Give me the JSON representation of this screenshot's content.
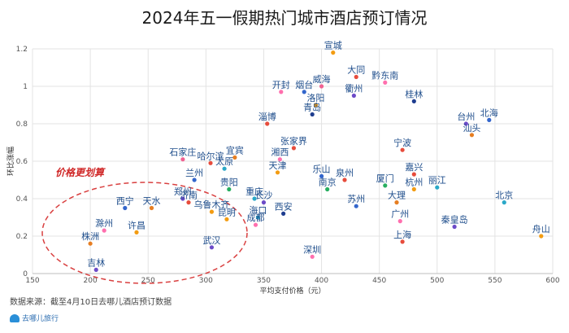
{
  "chart_data": {
    "type": "scatter",
    "title": "2024年五一假期热门城市酒店预订情况",
    "xlabel": "平均支付价格（元）",
    "ylabel": "环比涨幅",
    "xlim": [
      150,
      600
    ],
    "ylim": [
      0,
      1.2
    ],
    "xticks": [
      "150",
      "200",
      "250",
      "300",
      "350",
      "400",
      "450",
      "500",
      "550",
      "600"
    ],
    "yticks": [
      "0",
      "0.2",
      "0.4",
      "0.6",
      "0.8",
      "1",
      "1.2"
    ],
    "grid": true,
    "annotation": "价格更划算",
    "points": [
      {
        "name": "宣城",
        "x": 410,
        "y": 1.18,
        "color": "#f39c12"
      },
      {
        "name": "大同",
        "x": 430,
        "y": 1.05,
        "color": "#e74c3c"
      },
      {
        "name": "黔东南",
        "x": 455,
        "y": 1.02,
        "color": "#ff6fae"
      },
      {
        "name": "开封",
        "x": 365,
        "y": 0.97,
        "color": "#ff6fae"
      },
      {
        "name": "烟台",
        "x": 385,
        "y": 0.97,
        "color": "#3366cc"
      },
      {
        "name": "威海",
        "x": 400,
        "y": 1.0,
        "color": "#f06292"
      },
      {
        "name": "衢州",
        "x": 428,
        "y": 0.95,
        "color": "#6c4bc8"
      },
      {
        "name": "洛阳",
        "x": 395,
        "y": 0.9,
        "color": "#f39c12"
      },
      {
        "name": "桂林",
        "x": 480,
        "y": 0.92,
        "color": "#1e3d8f"
      },
      {
        "name": "青岛",
        "x": 392,
        "y": 0.85,
        "color": "#1e3d8f"
      },
      {
        "name": "淄博",
        "x": 353,
        "y": 0.8,
        "color": "#e74c3c"
      },
      {
        "name": "台州",
        "x": 525,
        "y": 0.8,
        "color": "#6c4bc8"
      },
      {
        "name": "北海",
        "x": 545,
        "y": 0.82,
        "color": "#3366cc"
      },
      {
        "name": "汕头",
        "x": 530,
        "y": 0.74,
        "color": "#e67e22"
      },
      {
        "name": "张家界",
        "x": 376,
        "y": 0.67,
        "color": "#e74c3c"
      },
      {
        "name": "宁波",
        "x": 470,
        "y": 0.66,
        "color": "#e74c3c"
      },
      {
        "name": "湘西",
        "x": 364,
        "y": 0.61,
        "color": "#ff6fae"
      },
      {
        "name": "石家庄",
        "x": 280,
        "y": 0.61,
        "color": "#f06292"
      },
      {
        "name": "宜宾",
        "x": 325,
        "y": 0.62,
        "color": "#e67e22"
      },
      {
        "name": "哈尔滨",
        "x": 304,
        "y": 0.59,
        "color": "#e74c3c"
      },
      {
        "name": "太原",
        "x": 316,
        "y": 0.56,
        "color": "#2aa8c8"
      },
      {
        "name": "天津",
        "x": 362,
        "y": 0.54,
        "color": "#f39c12"
      },
      {
        "name": "乐山",
        "x": 400,
        "y": 0.52,
        "color": "#3366cc"
      },
      {
        "name": "嘉兴",
        "x": 480,
        "y": 0.53,
        "color": "#e74c3c"
      },
      {
        "name": "泉州",
        "x": 420,
        "y": 0.5,
        "color": "#e74c3c"
      },
      {
        "name": "南京",
        "x": 405,
        "y": 0.45,
        "color": "#27ae60"
      },
      {
        "name": "厦门",
        "x": 455,
        "y": 0.47,
        "color": "#27ae60"
      },
      {
        "name": "杭州",
        "x": 480,
        "y": 0.45,
        "color": "#f39c12"
      },
      {
        "name": "丽江",
        "x": 500,
        "y": 0.46,
        "color": "#2aa8c8"
      },
      {
        "name": "兰州",
        "x": 290,
        "y": 0.5,
        "color": "#3366cc"
      },
      {
        "name": "贵阳",
        "x": 320,
        "y": 0.45,
        "color": "#27ae60"
      },
      {
        "name": "重庆",
        "x": 342,
        "y": 0.4,
        "color": "#2aa8c8"
      },
      {
        "name": "长沙",
        "x": 350,
        "y": 0.38,
        "color": "#6c4bc8"
      },
      {
        "name": "北京",
        "x": 558,
        "y": 0.38,
        "color": "#2aa8c8"
      },
      {
        "name": "苏州",
        "x": 430,
        "y": 0.36,
        "color": "#3366cc"
      },
      {
        "name": "大理",
        "x": 465,
        "y": 0.38,
        "color": "#e67e22"
      },
      {
        "name": "西安",
        "x": 367,
        "y": 0.32,
        "color": "#1e3d8f"
      },
      {
        "name": "郑州",
        "x": 280,
        "y": 0.4,
        "color": "#6c4bc8"
      },
      {
        "name": "济南",
        "x": 285,
        "y": 0.38,
        "color": "#e74c3c"
      },
      {
        "name": "西宁",
        "x": 230,
        "y": 0.35,
        "color": "#3366cc"
      },
      {
        "name": "天水",
        "x": 253,
        "y": 0.35,
        "color": "#e67e22"
      },
      {
        "name": "乌鲁木齐",
        "x": 305,
        "y": 0.33,
        "color": "#f39c12"
      },
      {
        "name": "海口",
        "x": 345,
        "y": 0.3,
        "color": "#2aa8c8"
      },
      {
        "name": "昆明",
        "x": 318,
        "y": 0.29,
        "color": "#f39c12"
      },
      {
        "name": "广州",
        "x": 468,
        "y": 0.28,
        "color": "#ff6fae"
      },
      {
        "name": "成都",
        "x": 343,
        "y": 0.26,
        "color": "#ff6fae"
      },
      {
        "name": "秦皇岛",
        "x": 515,
        "y": 0.25,
        "color": "#6c4bc8"
      },
      {
        "name": "滁州",
        "x": 212,
        "y": 0.23,
        "color": "#ff6fae"
      },
      {
        "name": "许昌",
        "x": 240,
        "y": 0.22,
        "color": "#f39c12"
      },
      {
        "name": "舟山",
        "x": 590,
        "y": 0.2,
        "color": "#f39c12"
      },
      {
        "name": "株洲",
        "x": 200,
        "y": 0.16,
        "color": "#e67e22"
      },
      {
        "name": "上海",
        "x": 470,
        "y": 0.17,
        "color": "#e74c3c"
      },
      {
        "name": "武汉",
        "x": 305,
        "y": 0.14,
        "color": "#6c4bc8"
      },
      {
        "name": "深圳",
        "x": 392,
        "y": 0.09,
        "color": "#ff6fae"
      },
      {
        "name": "吉林",
        "x": 205,
        "y": 0.02,
        "color": "#6c4bc8"
      }
    ]
  },
  "source_note": "数据来源：截至4月10日去哪儿酒店预订数据",
  "logo_text": "去哪儿旅行"
}
